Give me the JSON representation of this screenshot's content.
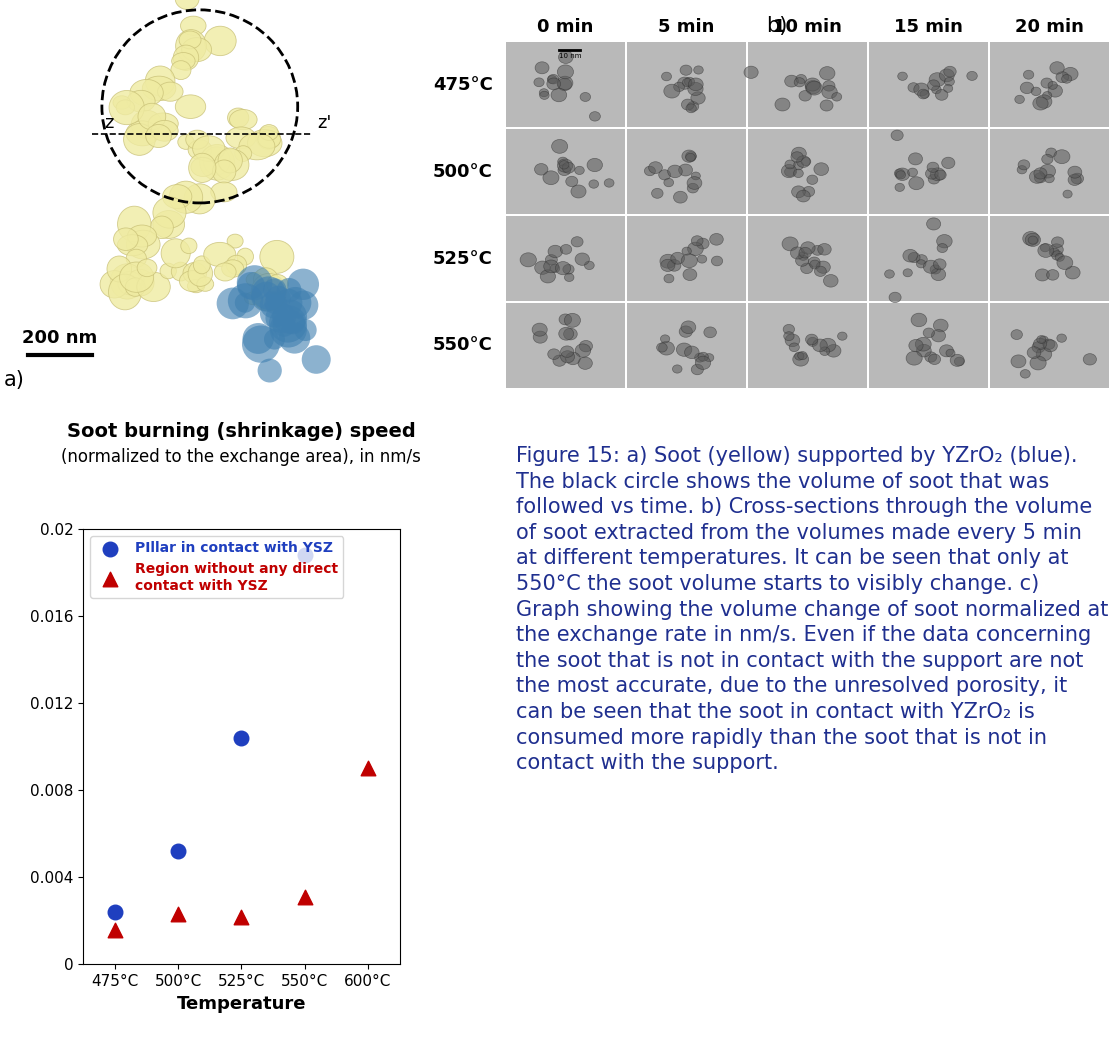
{
  "panel_a": {
    "label": "a)",
    "scale_bar": "200 nm",
    "section_labels": [
      "z",
      "z'"
    ]
  },
  "panel_b": {
    "label": "b)",
    "columns": [
      "0 min",
      "5 min",
      "10 min",
      "15 min",
      "20 min"
    ],
    "rows": [
      "475°C",
      "500°C",
      "525°C",
      "550°C"
    ],
    "scale_bar": "10 nm"
  },
  "chart_data": {
    "type": "scatter",
    "title": "Soot burning (shrinkage) speed",
    "subtitle": "(normalized to the exchange area), in nm/s",
    "x_label": "Temperature",
    "categories": [
      "475°C",
      "500°C",
      "525°C",
      "550°C",
      "600°C"
    ],
    "series": [
      {
        "name": "PIllar in contact with YSZ",
        "color": "#1f3fbf",
        "marker": "o",
        "values": [
          0.0024,
          0.0052,
          0.0104,
          0.0188,
          null
        ]
      },
      {
        "name": "Region without any direct\ncontact with YSZ",
        "color": "#c00000",
        "marker": "^",
        "values": [
          0.0016,
          0.0023,
          0.0022,
          0.0031,
          0.009
        ]
      }
    ],
    "ylim": [
      0,
      0.02
    ],
    "yticks": [
      0,
      0.004,
      0.008,
      0.012,
      0.016,
      0.02
    ],
    "grid": false,
    "legend": "upper left"
  },
  "caption": "Figure 15: a) Soot (yellow) supported by YZrO₂ (blue). The black circle shows the volume of soot that was followed vs time. b) Cross-sections through the volume of soot extracted from the volumes made every 5 min at different temperatures. It can be seen that only at 550°C the soot volume starts to visibly change. c) Graph showing the volume change of soot normalized at the exchange rate in nm/s. Even if the data concerning the soot that is not in contact with the support are not the most accurate, due to the unresolved porosity, it can be seen that the soot in contact with YZrO₂ is consumed more rapidly than the soot that is not in contact with the support."
}
